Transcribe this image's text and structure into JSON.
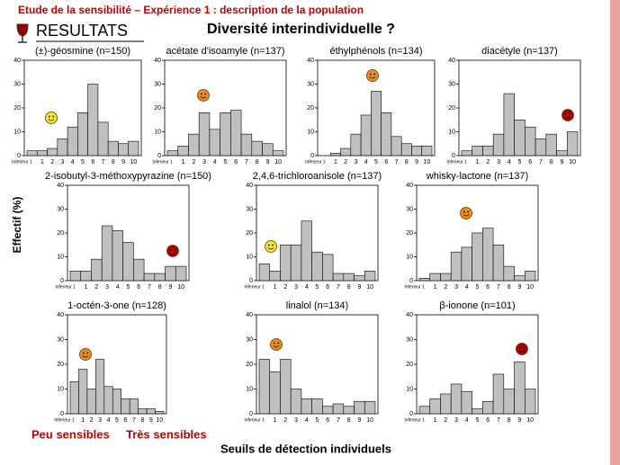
{
  "slide": {
    "header": "Etude de la sensibilité – Expérience 1 : description de la population",
    "section": "RESULTATS",
    "title": "Diversité interindividuelle ?",
    "y_label": "Effectif (%)",
    "x_label": "Seuils de détection individuels",
    "left_note": "Peu sensibles",
    "right_note": "Très sensibles"
  },
  "chart_data": [
    {
      "type": "bar",
      "title": "(±)-géosmine (n=150)",
      "categories": [
        "Inferieur 1",
        "1",
        "2",
        "3",
        "4",
        "5",
        "6",
        "7",
        "8",
        "9",
        "10"
      ],
      "values": [
        2,
        2,
        3,
        7,
        12,
        18,
        30,
        14,
        6,
        5,
        6
      ],
      "color": "#c0c0c0",
      "ylim": [
        0,
        40
      ],
      "yticks": [
        0,
        10,
        20,
        30,
        40
      ]
    },
    {
      "type": "bar",
      "title": "acétate d'isoamyle (n=137)",
      "categories": [
        "Inferieur 1",
        "1",
        "2",
        "3",
        "4",
        "5",
        "6",
        "7",
        "8",
        "9",
        "10"
      ],
      "values": [
        2,
        4,
        9,
        18,
        11,
        18,
        19,
        9,
        6,
        5,
        2
      ],
      "color": "#c0c0c0",
      "ylim": [
        0,
        40
      ],
      "yticks": [
        0,
        10,
        20,
        30,
        40
      ]
    },
    {
      "type": "bar",
      "title": "éthylphénols (n=134)",
      "categories": [
        "Inferieur 1",
        "1",
        "2",
        "3",
        "4",
        "5",
        "6",
        "7",
        "8",
        "9",
        "10"
      ],
      "values": [
        0,
        1,
        3,
        9,
        17,
        27,
        18,
        8,
        5,
        4,
        4
      ],
      "color": "#c0c0c0",
      "ylim": [
        0,
        40
      ],
      "yticks": [
        0,
        10,
        20,
        30,
        40
      ]
    },
    {
      "type": "bar",
      "title": "diacétyle (n=137)",
      "categories": [
        "Inferieur 1",
        "1",
        "2",
        "3",
        "4",
        "5",
        "6",
        "7",
        "8",
        "9",
        "10"
      ],
      "values": [
        2,
        4,
        4,
        9,
        26,
        15,
        12,
        7,
        9,
        2,
        10
      ],
      "color": "#c0c0c0",
      "ylim": [
        0,
        40
      ],
      "yticks": [
        0,
        10,
        20,
        30,
        40
      ]
    },
    {
      "type": "bar",
      "title": "2-isobutyl-3-méthoxypyrazine (n=150)",
      "categories": [
        "Inferieur 1",
        "1",
        "2",
        "3",
        "4",
        "5",
        "6",
        "7",
        "8",
        "9",
        "10"
      ],
      "values": [
        4,
        4,
        9,
        23,
        21,
        16,
        9,
        3,
        3,
        6,
        6
      ],
      "color": "#c0c0c0",
      "ylim": [
        0,
        40
      ],
      "yticks": [
        0,
        10,
        20,
        30,
        40
      ]
    },
    {
      "type": "bar",
      "title": "2,4,6-trichloroanisole (n=137)",
      "categories": [
        "Inferieur 1",
        "1",
        "2",
        "3",
        "4",
        "5",
        "6",
        "7",
        "8",
        "9",
        "10"
      ],
      "values": [
        7,
        4,
        15,
        15,
        25,
        12,
        11,
        3,
        3,
        2,
        4
      ],
      "color": "#c0c0c0",
      "ylim": [
        0,
        40
      ],
      "yticks": [
        0,
        10,
        20,
        30,
        40
      ]
    },
    {
      "type": "bar",
      "title": "whisky-lactone (n=137)",
      "categories": [
        "Inferieur 1",
        "1",
        "2",
        "3",
        "4",
        "5",
        "6",
        "7",
        "8",
        "9",
        "10"
      ],
      "values": [
        1,
        3,
        3,
        12,
        14,
        20,
        22,
        15,
        6,
        2,
        4
      ],
      "color": "#c0c0c0",
      "ylim": [
        0,
        40
      ],
      "yticks": [
        0,
        10,
        20,
        30,
        40
      ]
    },
    {
      "type": "bar",
      "title": "1-octén-3-one (n=128)",
      "categories": [
        "Inferieur 1",
        "1",
        "2",
        "3",
        "4",
        "5",
        "6",
        "7",
        "8",
        "9",
        "10"
      ],
      "values": [
        13,
        18,
        10,
        22,
        11,
        10,
        6,
        6,
        2,
        2,
        1
      ],
      "color": "#c0c0c0",
      "ylim": [
        0,
        40
      ],
      "yticks": [
        0,
        10,
        20,
        30,
        40
      ]
    },
    {
      "type": "bar",
      "title": "linalol (n=134)",
      "categories": [
        "Inferieur 1",
        "1",
        "2",
        "3",
        "4",
        "5",
        "6",
        "7",
        "8",
        "9",
        "10"
      ],
      "values": [
        22,
        17,
        22,
        10,
        6,
        6,
        3,
        4,
        3,
        5,
        5
      ],
      "color": "#c0c0c0",
      "ylim": [
        0,
        40
      ],
      "yticks": [
        0,
        10,
        20,
        30,
        40
      ]
    },
    {
      "type": "bar",
      "title": "β-ionone (n=101)",
      "categories": [
        "Inferieur 1",
        "1",
        "2",
        "3",
        "4",
        "5",
        "6",
        "7",
        "8",
        "9",
        "10"
      ],
      "values": [
        3,
        6,
        8,
        12,
        9,
        2,
        5,
        16,
        10,
        21,
        10
      ],
      "color": "#c0c0c0",
      "ylim": [
        0,
        40
      ],
      "yticks": [
        0,
        10,
        20,
        30,
        40
      ]
    }
  ]
}
